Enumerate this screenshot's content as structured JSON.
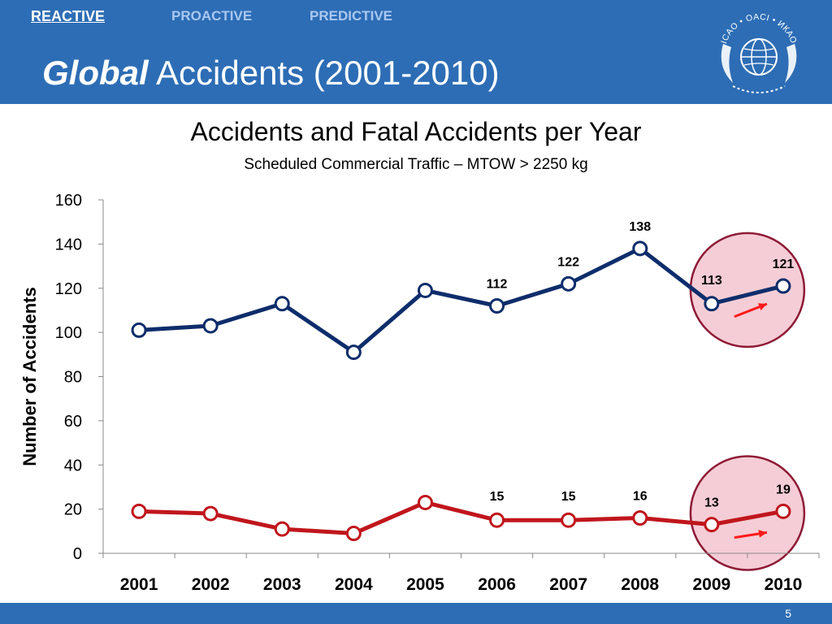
{
  "header": {
    "tabs": [
      {
        "label": "REACTIVE",
        "active": true
      },
      {
        "label": "PROACTIVE",
        "active": false
      },
      {
        "label": "PREDICTIVE",
        "active": false
      }
    ],
    "title_emphasis": "Global",
    "title_rest": " Accidents (2001-2010)",
    "logo_text": "ICAO • OACI • ИКАО",
    "background_color": "#2d6db5"
  },
  "footer": {
    "page_number": "5"
  },
  "chart_data": {
    "type": "line",
    "title": "Accidents and Fatal Accidents per Year",
    "subtitle": "Scheduled Commercial Traffic – MTOW > 2250 kg",
    "ylabel": "Number of Accidents",
    "xlabel": "",
    "ylim": [
      0,
      160
    ],
    "yticks": [
      0,
      20,
      40,
      60,
      80,
      100,
      120,
      140,
      160
    ],
    "categories": [
      "2001",
      "2002",
      "2003",
      "2004",
      "2005",
      "2006",
      "2007",
      "2008",
      "2009",
      "2010"
    ],
    "series": [
      {
        "values": [
          101,
          103,
          113,
          91,
          119,
          112,
          122,
          138,
          113,
          121
        ],
        "color": "#0e2d6b",
        "labeled": [
          false,
          false,
          false,
          false,
          false,
          true,
          true,
          true,
          true,
          true
        ]
      },
      {
        "values": [
          19,
          18,
          11,
          9,
          23,
          15,
          15,
          16,
          13,
          19
        ],
        "color": "#c0161c",
        "labeled": [
          false,
          false,
          false,
          false,
          false,
          true,
          true,
          true,
          true,
          true
        ]
      }
    ],
    "highlight_color": "#f5cdd6",
    "highlight_stroke": "#8e1a36",
    "arrow_color": "#ff1a1a",
    "grid": false
  }
}
